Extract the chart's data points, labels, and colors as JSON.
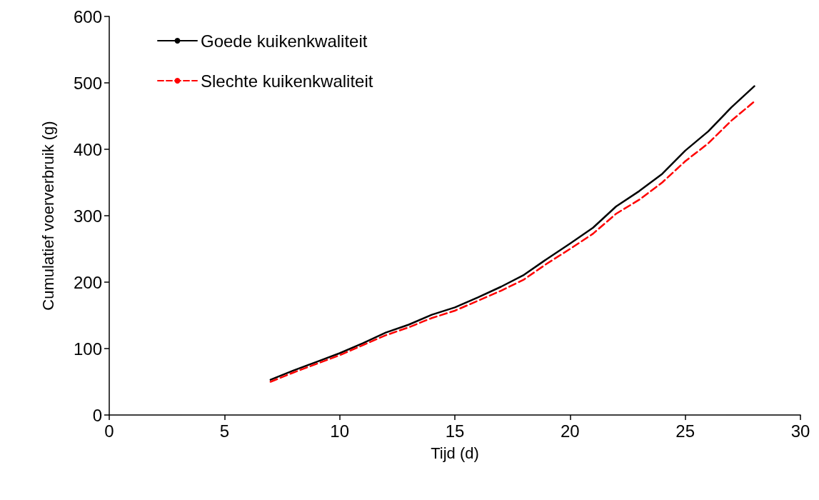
{
  "chart_data": {
    "type": "line",
    "xlabel": "Tijd (d)",
    "ylabel": "Cumulatief voerverbruik (g)",
    "x": [
      7,
      8,
      9,
      10,
      11,
      12,
      13,
      14,
      15,
      16,
      17,
      18,
      19,
      20,
      21,
      22,
      23,
      24,
      25,
      26,
      27,
      28
    ],
    "series": [
      {
        "name": "Goede kuikenkwaliteit",
        "color": "#000000",
        "line_style": "solid",
        "values": [
          53,
          67,
          80,
          93,
          108,
          124,
          136,
          151,
          162,
          177,
          193,
          211,
          235,
          258,
          282,
          314,
          337,
          363,
          398,
          427,
          463,
          495
        ]
      },
      {
        "name": "Slechte kuikenkwaliteit",
        "color": "#ff0000",
        "line_style": "dashed",
        "values": [
          50,
          64,
          77,
          90,
          105,
          120,
          132,
          146,
          157,
          172,
          187,
          204,
          228,
          250,
          273,
          303,
          324,
          350,
          382,
          409,
          443,
          472
        ]
      }
    ],
    "xlim": [
      0,
      30
    ],
    "xticks": [
      0,
      5,
      10,
      15,
      20,
      25,
      30
    ],
    "ylim": [
      0,
      600
    ],
    "yticks": [
      0,
      100,
      200,
      300,
      400,
      500,
      600
    ],
    "grid": false,
    "legend": "top left",
    "marker": "none"
  }
}
